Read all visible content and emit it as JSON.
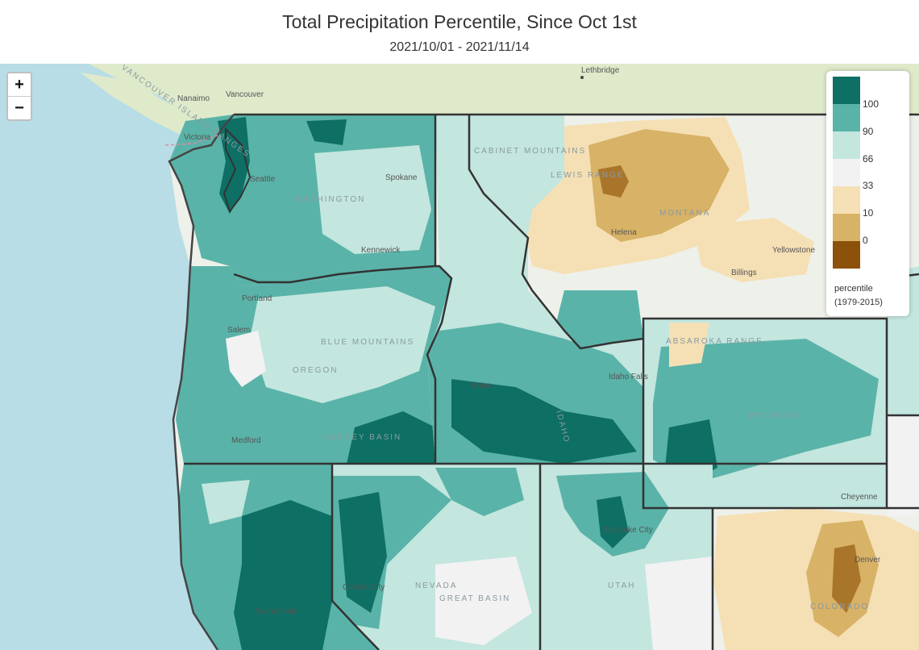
{
  "header": {
    "title": "Total Precipitation Percentile, Since Oct 1st",
    "date_range": "2021/10/01 - 2021/11/14"
  },
  "zoom": {
    "in_label": "+",
    "out_label": "−"
  },
  "legend": {
    "title_line1": "percentile",
    "title_line2": "(1979-2015)",
    "swatches": [
      {
        "color": "#0e6f64"
      },
      {
        "color": "#5ab3a8"
      },
      {
        "color": "#c3e6df"
      },
      {
        "color": "#f2f2f2"
      },
      {
        "color": "#f5e0b5"
      },
      {
        "color": "#d8b266"
      },
      {
        "color": "#8c510a"
      }
    ],
    "ticks": [
      "100",
      "90",
      "66",
      "33",
      "10",
      "0"
    ]
  },
  "colors": {
    "water": "#b8dde6",
    "land": "#eef0ea",
    "canada": "#dfeacb",
    "pct_90_100": "#0e6f64",
    "pct_66_90": "#5ab3a8",
    "pct_33_66": "#c3e6df",
    "pct_10_33": "#f5e0b5",
    "pct_0_10": "#d8b266",
    "pct_low": "#8c510a"
  },
  "places": {
    "cities": [
      "Lethbridge",
      "Nanaimo",
      "Vancouver",
      "Victoria",
      "Seattle",
      "Spokane",
      "Kennewick",
      "Portland",
      "Salem",
      "Medford",
      "Helena",
      "Billings",
      "Boise",
      "Idaho Falls",
      "Salt Lake City",
      "Carson City",
      "Sacramento",
      "Denver",
      "Cheyenne",
      "Yellowstone"
    ],
    "regions": [
      "VANCOUVER ISLAND RANGES",
      "WASHINGTON",
      "OREGON",
      "CABINET MOUNTAINS",
      "LEWIS RANGE",
      "MONTANA",
      "BLUE MOUNTAINS",
      "ABSAROKA RANGE",
      "WYOMING",
      "UTAH",
      "NEVADA",
      "GREAT BASIN",
      "COLORADO",
      "HARNEY BASIN",
      "IDAHO"
    ]
  }
}
